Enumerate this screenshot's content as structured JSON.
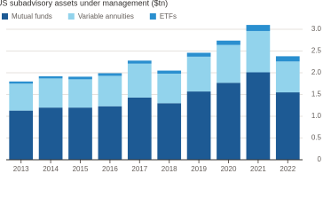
{
  "chart_data": {
    "type": "stacked_bar",
    "title": "US subadvisory assets under management ($tn)",
    "categories": [
      "2013",
      "2014",
      "2015",
      "2016",
      "2017",
      "2018",
      "2019",
      "2020",
      "2021",
      "2022"
    ],
    "series": [
      {
        "name": "Mutual funds",
        "color": "#1d5a94",
        "values": [
          1.13,
          1.2,
          1.2,
          1.23,
          1.43,
          1.3,
          1.57,
          1.77,
          2.01,
          1.55
        ]
      },
      {
        "name": "Variable annuities",
        "color": "#92d3ec",
        "values": [
          0.62,
          0.67,
          0.65,
          0.7,
          0.78,
          0.68,
          0.8,
          0.87,
          0.95,
          0.71
        ]
      },
      {
        "name": "ETFs",
        "color": "#2a8fcf",
        "values": [
          0.05,
          0.05,
          0.06,
          0.06,
          0.07,
          0.07,
          0.09,
          0.1,
          0.14,
          0.12
        ]
      }
    ],
    "ylim": [
      0,
      3.0
    ],
    "yticks": [
      0,
      0.5,
      {
        "value": 1,
        "label": "1.0"
      },
      1.5,
      {
        "value": 2,
        "label": "2.0"
      },
      2.5,
      {
        "value": 3,
        "label": "3.0"
      }
    ],
    "grid": true
  }
}
